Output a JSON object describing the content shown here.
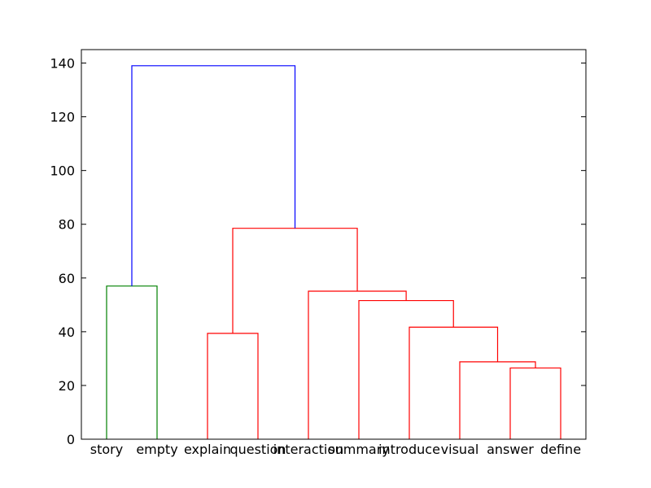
{
  "chart_data": {
    "type": "dendrogram",
    "title": "",
    "xlabel": "",
    "ylabel": "",
    "ylim": [
      0,
      145
    ],
    "yticks": [
      0,
      20,
      40,
      60,
      80,
      100,
      120,
      140
    ],
    "grid": false,
    "legend": "none",
    "leaves": [
      "story",
      "empty",
      "explain",
      "question",
      "interaction",
      "summary",
      "introduce",
      "visual",
      "answer",
      "define"
    ],
    "colors": {
      "green": "#008000",
      "red": "#ff0000",
      "blue": "#0000ff",
      "axis": "#000000"
    },
    "merges": [
      {
        "left": "leaf:8",
        "right": "leaf:9",
        "height": 26.5,
        "color": "red"
      },
      {
        "left": "leaf:7",
        "right": "node:0",
        "height": 28.8,
        "color": "red"
      },
      {
        "left": "leaf:6",
        "right": "node:1",
        "height": 41.7,
        "color": "red"
      },
      {
        "left": "leaf:5",
        "right": "node:2",
        "height": 51.6,
        "color": "red"
      },
      {
        "left": "leaf:4",
        "right": "node:3",
        "height": 55.1,
        "color": "red"
      },
      {
        "left": "leaf:2",
        "right": "leaf:3",
        "height": 39.4,
        "color": "red"
      },
      {
        "left": "node:5",
        "right": "node:4",
        "height": 78.5,
        "color": "red"
      },
      {
        "left": "leaf:0",
        "right": "leaf:1",
        "height": 57.0,
        "color": "green"
      },
      {
        "left": "node:7",
        "right": "node:6",
        "height": 139.0,
        "color": "blue"
      }
    ]
  }
}
